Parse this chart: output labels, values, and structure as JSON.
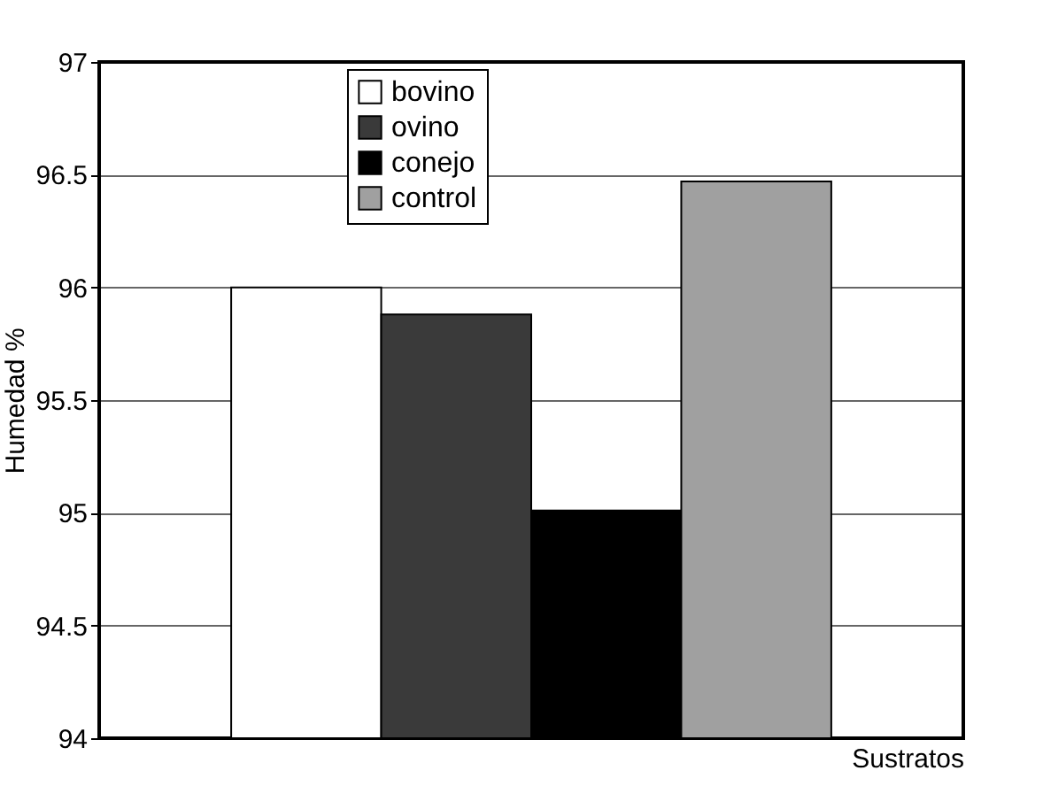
{
  "chart_data": {
    "type": "bar",
    "xlabel": "Sustratos",
    "ylabel": "Humedad %",
    "categories": [
      null
    ],
    "series": [
      {
        "name": "bovino",
        "color": "#ffffff",
        "values": [
          96.0
        ]
      },
      {
        "name": "ovino",
        "color": "#3a3a3a",
        "values": [
          95.88
        ]
      },
      {
        "name": "conejo",
        "color": "#000000",
        "values": [
          95.01
        ]
      },
      {
        "name": "control",
        "color": "#a0a0a0",
        "values": [
          96.47
        ]
      }
    ],
    "ylim": [
      94,
      97
    ],
    "yticks": [
      94,
      94.5,
      95,
      95.5,
      96,
      96.5,
      97
    ],
    "grid": "y",
    "legend": "top"
  }
}
